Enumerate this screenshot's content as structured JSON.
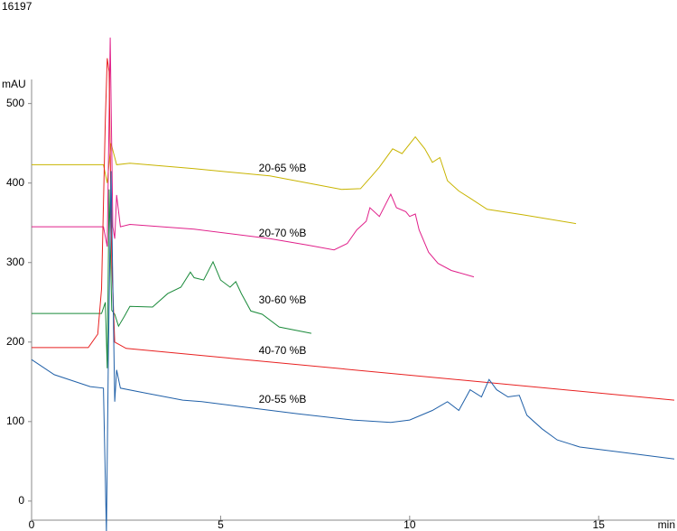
{
  "chart_data": {
    "type": "line",
    "title": "16197",
    "y_label": "mAU",
    "x_label": "min",
    "xlim": [
      0,
      17
    ],
    "ylim": [
      -24,
      528
    ],
    "xticks": [
      0,
      5,
      10,
      15
    ],
    "yticks": [
      0,
      100,
      200,
      300,
      400,
      500
    ],
    "series": [
      {
        "name": "20-65 %B",
        "color": "#c8b400",
        "x": [
          0,
          1.9,
          2.0,
          2.1,
          2.25,
          2.6,
          4.3,
          6.3,
          8.2,
          8.7,
          9.0,
          9.2,
          9.55,
          9.8,
          10.15,
          10.4,
          10.6,
          10.8,
          11.0,
          11.3,
          11.6,
          12.05,
          13.0,
          14.4
        ],
        "values": [
          423,
          423,
          400,
          450,
          423,
          425,
          418,
          409,
          392,
          393,
          409,
          420,
          443,
          437,
          458,
          443,
          426,
          432,
          403,
          390,
          381,
          367,
          360,
          349
        ]
      },
      {
        "name": "20-70 %B",
        "color": "#e0208a",
        "x": [
          0,
          1.9,
          2.0,
          2.08,
          2.15,
          2.2,
          2.25,
          2.35,
          2.6,
          4.3,
          6.3,
          7.3,
          8.0,
          8.35,
          8.6,
          8.85,
          8.95,
          9.2,
          9.5,
          9.65,
          9.9,
          10.0,
          10.15,
          10.25,
          10.5,
          10.75,
          11.1,
          11.7
        ],
        "values": [
          345,
          345,
          320,
          583,
          345,
          330,
          385,
          345,
          348,
          342,
          330,
          322,
          316,
          324,
          341,
          352,
          369,
          358,
          386,
          369,
          364,
          358,
          361,
          341,
          313,
          299,
          290,
          282
        ]
      },
      {
        "name": "30-60 %B",
        "color": "#1a8a3a",
        "x": [
          0,
          1.85,
          1.95,
          2.0,
          2.05,
          2.12,
          2.2,
          2.3,
          2.45,
          2.6,
          3.2,
          3.6,
          3.95,
          4.2,
          4.3,
          4.55,
          4.8,
          5.0,
          5.25,
          5.4,
          5.55,
          5.8,
          6.1,
          6.55,
          7.4
        ],
        "values": [
          236,
          236,
          250,
          167,
          392,
          240,
          235,
          220,
          232,
          245,
          244,
          261,
          269,
          288,
          281,
          278,
          301,
          278,
          269,
          276,
          261,
          239,
          235,
          219,
          211
        ]
      },
      {
        "name": "40-70 %B",
        "color": "#e82020",
        "x": [
          0,
          1.5,
          1.75,
          1.85,
          1.95,
          2.0,
          2.05,
          2.12,
          2.2,
          2.5,
          17.0
        ],
        "values": [
          193,
          193,
          210,
          267,
          480,
          557,
          540,
          300,
          200,
          192,
          127
        ]
      },
      {
        "name": "20-55 %B",
        "color": "#2060a8",
        "x": [
          0,
          0.6,
          1.55,
          1.9,
          1.98,
          2.03,
          2.1,
          2.2,
          2.25,
          2.35,
          3.0,
          4.0,
          4.5,
          5.5,
          7.0,
          8.5,
          9.5,
          10.0,
          10.6,
          11.0,
          11.3,
          11.6,
          11.9,
          12.1,
          12.3,
          12.6,
          12.9,
          13.1,
          13.5,
          13.9,
          14.5,
          15.5,
          17.0
        ],
        "values": [
          178,
          159,
          144,
          142,
          -40,
          176,
          415,
          125,
          165,
          142,
          136,
          127,
          125,
          119,
          110,
          102,
          99,
          102,
          114,
          125,
          114,
          140,
          131,
          153,
          140,
          131,
          133,
          108,
          91,
          77,
          68,
          62,
          53
        ]
      }
    ]
  }
}
